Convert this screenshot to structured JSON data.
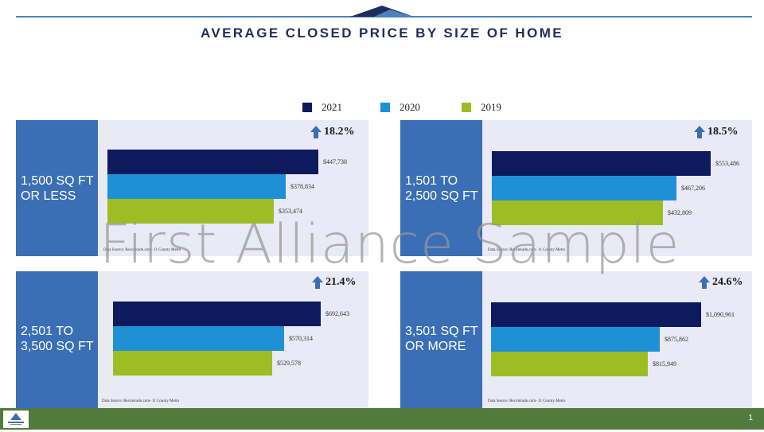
{
  "title": "AVERAGE CLOSED PRICE BY SIZE OF HOME",
  "legend": [
    {
      "label": "2021",
      "color": "#0d1a5e"
    },
    {
      "label": "2020",
      "color": "#1e90d6"
    },
    {
      "label": "2019",
      "color": "#9ebd25"
    }
  ],
  "watermark": "First Alliance Sample",
  "page_number": "1",
  "chart_data": [
    {
      "type": "bar",
      "orientation": "horizontal",
      "label_line1": "1,500 SQ FT",
      "label_line2": "OR LESS",
      "change": "18.2%",
      "series": [
        {
          "name": "2021",
          "value": 447738,
          "label": "$447,738"
        },
        {
          "name": "2020",
          "value": 378834,
          "label": "$378,834"
        },
        {
          "name": "2019",
          "value": 353474,
          "label": "$353,474"
        }
      ],
      "source": "Data Source: Recolorado.com- 11 County Metro"
    },
    {
      "type": "bar",
      "orientation": "horizontal",
      "label_line1": "1,501 TO",
      "label_line2": "2,500 SQ FT",
      "change": "18.5%",
      "series": [
        {
          "name": "2021",
          "value": 553486,
          "label": "$553,486"
        },
        {
          "name": "2020",
          "value": 467206,
          "label": "$467,206"
        },
        {
          "name": "2019",
          "value": 432809,
          "label": "$432,809"
        }
      ],
      "source": "Data Source: Recolorado.com- 11 County Metro"
    },
    {
      "type": "bar",
      "orientation": "horizontal",
      "label_line1": "2,501 TO",
      "label_line2": "3,500 SQ FT",
      "change": "21.4%",
      "series": [
        {
          "name": "2021",
          "value": 692643,
          "label": "$692,643"
        },
        {
          "name": "2020",
          "value": 570314,
          "label": "$570,314"
        },
        {
          "name": "2019",
          "value": 529578,
          "label": "$529,578"
        }
      ],
      "source": "Data Source: Recolorado.com- 11 County Metro"
    },
    {
      "type": "bar",
      "orientation": "horizontal",
      "label_line1": "3,501 SQ FT",
      "label_line2": "OR MORE",
      "change": "24.6%",
      "series": [
        {
          "name": "2021",
          "value": 1090961,
          "label": "$1,090,961"
        },
        {
          "name": "2020",
          "value": 875862,
          "label": "$875,862"
        },
        {
          "name": "2019",
          "value": 815949,
          "label": "$815,949"
        }
      ],
      "source": "Data Source: Recolorado.com- 11 County Metro"
    }
  ]
}
